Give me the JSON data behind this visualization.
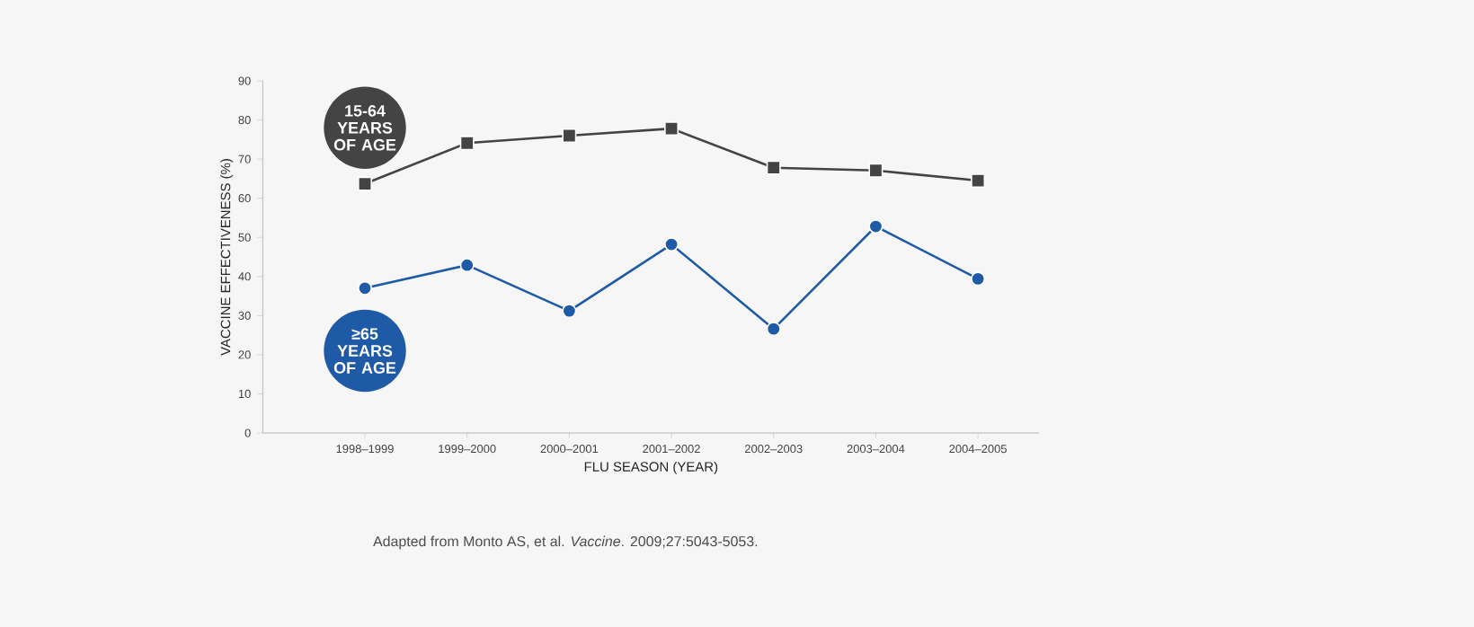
{
  "chart_data": {
    "type": "line",
    "xlabel": "FLU SEASON (YEAR)",
    "ylabel": "VACCINE EFFECTIVENESS (%)",
    "categories": [
      "1998–1999",
      "1999–2000",
      "2000–2001",
      "2001–2002",
      "2002–2003",
      "2003–2004",
      "2004–2005"
    ],
    "series": [
      {
        "name": "15-64 YEARS OF AGE",
        "color": "#444444",
        "marker": "square",
        "values": [
          63.7,
          74.1,
          76,
          77.8,
          67.8,
          67.1,
          64.5
        ]
      },
      {
        "name": "≥65 YEARS OF AGE",
        "color": "#1f5aa6",
        "marker": "circle",
        "values": [
          37,
          42.9,
          31.2,
          48.2,
          26.6,
          52.8,
          39.4
        ]
      }
    ],
    "ylim": [
      0,
      90
    ],
    "yticks": [
      0,
      10,
      20,
      30,
      40,
      50,
      60,
      70,
      80,
      90
    ],
    "grid": false,
    "legend": false,
    "annotations": [
      "Adapted from Monto AS, et al. *Vaccine*. 2009;27:5043-5053."
    ]
  }
}
